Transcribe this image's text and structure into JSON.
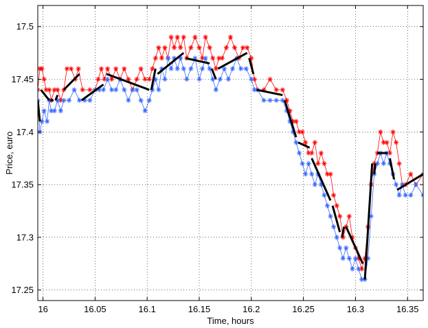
{
  "chart_data": {
    "type": "line",
    "title": "",
    "xlabel": "Time, hours",
    "ylabel": "Price, euro",
    "xlim": [
      15.995,
      16.365
    ],
    "ylim": [
      17.24,
      17.52
    ],
    "xticks": [
      16,
      16.05,
      16.1,
      16.15,
      16.2,
      16.25,
      16.3,
      16.35
    ],
    "xtick_labels": [
      "16",
      "16.05",
      "16.1",
      "16.15",
      "16.2",
      "16.25",
      "16.3",
      "16.35"
    ],
    "yticks": [
      17.25,
      17.3,
      17.35,
      17.4,
      17.45,
      17.5
    ],
    "ytick_labels": [
      "17.25",
      "17.3",
      "17.35",
      "17.4",
      "17.45",
      "17.5"
    ],
    "grid": true,
    "series": [
      {
        "color": "#ff0000",
        "marker": "asterisk",
        "values": [
          [
            15.995,
            17.44
          ],
          [
            15.997,
            17.46
          ],
          [
            15.999,
            17.46
          ],
          [
            16.001,
            17.45
          ],
          [
            16.003,
            17.44
          ],
          [
            16.006,
            17.44
          ],
          [
            16.008,
            17.43
          ],
          [
            16.011,
            17.44
          ],
          [
            16.014,
            17.44
          ],
          [
            16.017,
            17.43
          ],
          [
            16.02,
            17.44
          ],
          [
            16.023,
            17.46
          ],
          [
            16.027,
            17.46
          ],
          [
            16.031,
            17.45
          ],
          [
            16.034,
            17.46
          ],
          [
            16.038,
            17.44
          ],
          [
            16.045,
            17.44
          ],
          [
            16.05,
            17.44
          ],
          [
            16.053,
            17.45
          ],
          [
            16.056,
            17.46
          ],
          [
            16.059,
            17.45
          ],
          [
            16.062,
            17.46
          ],
          [
            16.066,
            17.45
          ],
          [
            16.07,
            17.46
          ],
          [
            16.074,
            17.45
          ],
          [
            16.078,
            17.46
          ],
          [
            16.082,
            17.45
          ],
          [
            16.086,
            17.44
          ],
          [
            16.09,
            17.45
          ],
          [
            16.094,
            17.46
          ],
          [
            16.098,
            17.45
          ],
          [
            16.102,
            17.45
          ],
          [
            16.105,
            17.46
          ],
          [
            16.108,
            17.47
          ],
          [
            16.111,
            17.48
          ],
          [
            16.114,
            17.47
          ],
          [
            16.117,
            17.48
          ],
          [
            16.12,
            17.47
          ],
          [
            16.123,
            17.49
          ],
          [
            16.126,
            17.48
          ],
          [
            16.129,
            17.49
          ],
          [
            16.132,
            17.48
          ],
          [
            16.135,
            17.49
          ],
          [
            16.138,
            17.47
          ],
          [
            16.142,
            17.48
          ],
          [
            16.146,
            17.49
          ],
          [
            16.15,
            17.48
          ],
          [
            16.153,
            17.47
          ],
          [
            16.156,
            17.49
          ],
          [
            16.16,
            17.48
          ],
          [
            16.163,
            17.47
          ],
          [
            16.166,
            17.46
          ],
          [
            16.169,
            17.47
          ],
          [
            16.172,
            17.47
          ],
          [
            16.176,
            17.48
          ],
          [
            16.18,
            17.49
          ],
          [
            16.184,
            17.48
          ],
          [
            16.188,
            17.47
          ],
          [
            16.192,
            17.48
          ],
          [
            16.196,
            17.48
          ],
          [
            16.2,
            17.47
          ],
          [
            16.203,
            17.45
          ],
          [
            16.206,
            17.44
          ],
          [
            16.212,
            17.44
          ],
          [
            16.218,
            17.45
          ],
          [
            16.224,
            17.44
          ],
          [
            16.23,
            17.44
          ],
          [
            16.234,
            17.43
          ],
          [
            16.237,
            17.42
          ],
          [
            16.24,
            17.41
          ],
          [
            16.243,
            17.41
          ],
          [
            16.246,
            17.4
          ],
          [
            16.249,
            17.4
          ],
          [
            16.252,
            17.39
          ],
          [
            16.255,
            17.38
          ],
          [
            16.258,
            17.38
          ],
          [
            16.261,
            17.39
          ],
          [
            16.264,
            17.37
          ],
          [
            16.267,
            17.38
          ],
          [
            16.27,
            17.37
          ],
          [
            16.273,
            17.36
          ],
          [
            16.276,
            17.36
          ],
          [
            16.279,
            17.34
          ],
          [
            16.282,
            17.33
          ],
          [
            16.285,
            17.32
          ],
          [
            16.288,
            17.3
          ],
          [
            16.291,
            17.31
          ],
          [
            16.294,
            17.32
          ],
          [
            16.297,
            17.3
          ],
          [
            16.3,
            17.29
          ],
          [
            16.303,
            17.28
          ],
          [
            16.306,
            17.27
          ],
          [
            16.309,
            17.28
          ],
          [
            16.312,
            17.31
          ],
          [
            16.315,
            17.35
          ],
          [
            16.318,
            17.37
          ],
          [
            16.321,
            17.38
          ],
          [
            16.324,
            17.4
          ],
          [
            16.327,
            17.39
          ],
          [
            16.33,
            17.39
          ],
          [
            16.333,
            17.38
          ],
          [
            16.336,
            17.4
          ],
          [
            16.339,
            17.39
          ],
          [
            16.342,
            17.37
          ],
          [
            16.345,
            17.35
          ],
          [
            16.348,
            17.35
          ],
          [
            16.353,
            17.36
          ],
          [
            16.358,
            17.35
          ],
          [
            16.365,
            17.36
          ]
        ]
      },
      {
        "color": "#3366ff",
        "marker": "asterisk",
        "values": [
          [
            15.995,
            17.43
          ],
          [
            15.997,
            17.4
          ],
          [
            15.999,
            17.41
          ],
          [
            16.001,
            17.42
          ],
          [
            16.004,
            17.41
          ],
          [
            16.006,
            17.43
          ],
          [
            16.008,
            17.42
          ],
          [
            16.011,
            17.42
          ],
          [
            16.014,
            17.43
          ],
          [
            16.017,
            17.42
          ],
          [
            16.02,
            17.43
          ],
          [
            16.025,
            17.43
          ],
          [
            16.03,
            17.44
          ],
          [
            16.035,
            17.43
          ],
          [
            16.04,
            17.43
          ],
          [
            16.045,
            17.43
          ],
          [
            16.05,
            17.44
          ],
          [
            16.054,
            17.44
          ],
          [
            16.058,
            17.44
          ],
          [
            16.062,
            17.45
          ],
          [
            16.066,
            17.44
          ],
          [
            16.07,
            17.44
          ],
          [
            16.074,
            17.45
          ],
          [
            16.078,
            17.44
          ],
          [
            16.082,
            17.43
          ],
          [
            16.086,
            17.44
          ],
          [
            16.09,
            17.44
          ],
          [
            16.094,
            17.43
          ],
          [
            16.098,
            17.42
          ],
          [
            16.102,
            17.43
          ],
          [
            16.105,
            17.44
          ],
          [
            16.108,
            17.45
          ],
          [
            16.111,
            17.44
          ],
          [
            16.114,
            17.46
          ],
          [
            16.117,
            17.45
          ],
          [
            16.12,
            17.47
          ],
          [
            16.123,
            17.46
          ],
          [
            16.126,
            17.47
          ],
          [
            16.129,
            17.46
          ],
          [
            16.132,
            17.47
          ],
          [
            16.135,
            17.46
          ],
          [
            16.138,
            17.45
          ],
          [
            16.142,
            17.46
          ],
          [
            16.146,
            17.47
          ],
          [
            16.15,
            17.45
          ],
          [
            16.153,
            17.46
          ],
          [
            16.156,
            17.47
          ],
          [
            16.16,
            17.46
          ],
          [
            16.163,
            17.45
          ],
          [
            16.166,
            17.44
          ],
          [
            16.17,
            17.45
          ],
          [
            16.174,
            17.46
          ],
          [
            16.178,
            17.45
          ],
          [
            16.182,
            17.46
          ],
          [
            16.186,
            17.47
          ],
          [
            16.19,
            17.46
          ],
          [
            16.195,
            17.46
          ],
          [
            16.2,
            17.45
          ],
          [
            16.203,
            17.44
          ],
          [
            16.206,
            17.44
          ],
          [
            16.212,
            17.43
          ],
          [
            16.218,
            17.43
          ],
          [
            16.224,
            17.43
          ],
          [
            16.23,
            17.43
          ],
          [
            16.234,
            17.42
          ],
          [
            16.237,
            17.41
          ],
          [
            16.24,
            17.4
          ],
          [
            16.243,
            17.39
          ],
          [
            16.246,
            17.38
          ],
          [
            16.249,
            17.37
          ],
          [
            16.252,
            17.36
          ],
          [
            16.255,
            17.37
          ],
          [
            16.258,
            17.36
          ],
          [
            16.261,
            17.35
          ],
          [
            16.264,
            17.36
          ],
          [
            16.267,
            17.35
          ],
          [
            16.27,
            17.34
          ],
          [
            16.273,
            17.33
          ],
          [
            16.276,
            17.32
          ],
          [
            16.279,
            17.31
          ],
          [
            16.282,
            17.3
          ],
          [
            16.285,
            17.29
          ],
          [
            16.288,
            17.28
          ],
          [
            16.291,
            17.29
          ],
          [
            16.294,
            17.28
          ],
          [
            16.297,
            17.27
          ],
          [
            16.3,
            17.28
          ],
          [
            16.303,
            17.27
          ],
          [
            16.306,
            17.26
          ],
          [
            16.309,
            17.26
          ],
          [
            16.312,
            17.28
          ],
          [
            16.315,
            17.32
          ],
          [
            16.318,
            17.36
          ],
          [
            16.321,
            17.37
          ],
          [
            16.324,
            17.38
          ],
          [
            16.327,
            17.37
          ],
          [
            16.33,
            17.38
          ],
          [
            16.333,
            17.37
          ],
          [
            16.336,
            17.36
          ],
          [
            16.339,
            17.35
          ],
          [
            16.342,
            17.34
          ],
          [
            16.345,
            17.35
          ],
          [
            16.348,
            17.34
          ],
          [
            16.353,
            17.34
          ],
          [
            16.358,
            17.35
          ],
          [
            16.365,
            17.34
          ]
        ]
      },
      {
        "color": "#000000",
        "marker": "none",
        "style": "segments",
        "segments": [
          [
            [
              15.995,
              17.43
            ],
            [
              15.997,
              17.41
            ]
          ],
          [
            [
              15.998,
              17.44
            ],
            [
              16.006,
              17.43
            ]
          ],
          [
            [
              16.007,
              17.43
            ],
            [
              16.01,
              17.43
            ]
          ],
          [
            [
              16.012,
              17.43
            ],
            [
              16.014,
              17.435
            ]
          ],
          [
            [
              16.02,
              17.44
            ],
            [
              16.035,
              17.455
            ]
          ],
          [
            [
              16.037,
              17.43
            ],
            [
              16.058,
              17.445
            ]
          ],
          [
            [
              16.061,
              17.455
            ],
            [
              16.102,
              17.44
            ]
          ],
          [
            [
              16.104,
              17.44
            ],
            [
              16.108,
              17.46
            ]
          ],
          [
            [
              16.11,
              17.455
            ],
            [
              16.135,
              17.475
            ]
          ],
          [
            [
              16.137,
              17.47
            ],
            [
              16.16,
              17.465
            ]
          ],
          [
            [
              16.162,
              17.46
            ],
            [
              16.166,
              17.45
            ]
          ],
          [
            [
              16.168,
              17.46
            ],
            [
              16.196,
              17.475
            ]
          ],
          [
            [
              16.198,
              17.47
            ],
            [
              16.202,
              17.455
            ]
          ],
          [
            [
              16.205,
              17.44
            ],
            [
              16.23,
              17.435
            ]
          ],
          [
            [
              16.232,
              17.43
            ],
            [
              16.243,
              17.395
            ]
          ],
          [
            [
              16.245,
              17.39
            ],
            [
              16.256,
              17.385
            ]
          ],
          [
            [
              16.258,
              17.375
            ],
            [
              16.276,
              17.335
            ]
          ],
          [
            [
              16.278,
              17.33
            ],
            [
              16.285,
              17.305
            ]
          ],
          [
            [
              16.287,
              17.3
            ],
            [
              16.289,
              17.31
            ]
          ],
          [
            [
              16.291,
              17.31
            ],
            [
              16.307,
              17.275
            ]
          ],
          [
            [
              16.309,
              17.26
            ],
            [
              16.316,
              17.37
            ]
          ],
          [
            [
              16.318,
              17.36
            ],
            [
              16.319,
              17.37
            ]
          ],
          [
            [
              16.321,
              17.38
            ],
            [
              16.331,
              17.38
            ]
          ],
          [
            [
              16.333,
              17.375
            ],
            [
              16.337,
              17.355
            ]
          ],
          [
            [
              16.34,
              17.345
            ],
            [
              16.365,
              17.36
            ]
          ]
        ]
      }
    ]
  }
}
